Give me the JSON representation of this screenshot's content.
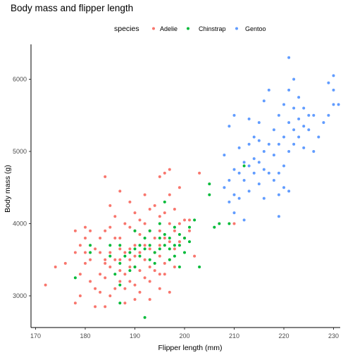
{
  "chart_data": {
    "type": "scatter",
    "title": "Body mass and flipper length",
    "xlabel": "Flipper length (mm)",
    "ylabel": "Body mass (g)",
    "xlim": [
      170,
      232
    ],
    "ylim": [
      2500,
      6500
    ],
    "x_ticks": [
      170,
      180,
      190,
      200,
      210,
      220,
      230
    ],
    "y_ticks": [
      3000,
      4000,
      5000,
      6000
    ],
    "grid": false,
    "legend": {
      "title": "species",
      "position": "top"
    },
    "series": [
      {
        "name": "Adelie",
        "color": "#f8766d",
        "points": [
          [
            172,
            3150
          ],
          [
            174,
            3400
          ],
          [
            176,
            3450
          ],
          [
            178,
            2900
          ],
          [
            178,
            3600
          ],
          [
            178,
            3900
          ],
          [
            179,
            3000
          ],
          [
            179,
            3300
          ],
          [
            179,
            3700
          ],
          [
            180,
            3450
          ],
          [
            180,
            3600
          ],
          [
            180,
            3800
          ],
          [
            180,
            3950
          ],
          [
            181,
            3200
          ],
          [
            181,
            3500
          ],
          [
            181,
            3900
          ],
          [
            182,
            2850
          ],
          [
            182,
            3100
          ],
          [
            182,
            3650
          ],
          [
            183,
            3050
          ],
          [
            183,
            3300
          ],
          [
            183,
            3600
          ],
          [
            183,
            3800
          ],
          [
            184,
            2850
          ],
          [
            184,
            3250
          ],
          [
            184,
            3450
          ],
          [
            184,
            3500
          ],
          [
            184,
            3900
          ],
          [
            184,
            4650
          ],
          [
            185,
            3000
          ],
          [
            185,
            3400
          ],
          [
            185,
            3600
          ],
          [
            185,
            3950
          ],
          [
            185,
            4250
          ],
          [
            186,
            3100
          ],
          [
            186,
            3500
          ],
          [
            186,
            3800
          ],
          [
            186,
            4100
          ],
          [
            187,
            3200
          ],
          [
            187,
            3350
          ],
          [
            187,
            3500
          ],
          [
            187,
            3650
          ],
          [
            187,
            3800
          ],
          [
            187,
            4450
          ],
          [
            188,
            2900
          ],
          [
            188,
            3100
          ],
          [
            188,
            3300
          ],
          [
            188,
            3600
          ],
          [
            188,
            4000
          ],
          [
            189,
            3200
          ],
          [
            189,
            3400
          ],
          [
            189,
            3500
          ],
          [
            189,
            3650
          ],
          [
            189,
            3950
          ],
          [
            189,
            4300
          ],
          [
            190,
            2950
          ],
          [
            190,
            3150
          ],
          [
            190,
            3400
          ],
          [
            190,
            3550
          ],
          [
            190,
            3700
          ],
          [
            190,
            3900
          ],
          [
            190,
            4150
          ],
          [
            191,
            3050
          ],
          [
            191,
            3350
          ],
          [
            191,
            3600
          ],
          [
            191,
            3850
          ],
          [
            191,
            4050
          ],
          [
            192,
            3250
          ],
          [
            192,
            3500
          ],
          [
            192,
            3700
          ],
          [
            192,
            4000
          ],
          [
            192,
            4400
          ],
          [
            193,
            2950
          ],
          [
            193,
            3200
          ],
          [
            193,
            3400
          ],
          [
            193,
            3650
          ],
          [
            193,
            3900
          ],
          [
            193,
            4200
          ],
          [
            194,
            3350
          ],
          [
            194,
            3600
          ],
          [
            194,
            3800
          ],
          [
            194,
            4250
          ],
          [
            195,
            3100
          ],
          [
            195,
            3300
          ],
          [
            195,
            3550
          ],
          [
            195,
            3700
          ],
          [
            195,
            3900
          ],
          [
            195,
            4100
          ],
          [
            195,
            4650
          ],
          [
            196,
            3300
          ],
          [
            196,
            3450
          ],
          [
            196,
            3800
          ],
          [
            196,
            4150
          ],
          [
            196,
            4700
          ],
          [
            197,
            3050
          ],
          [
            197,
            3500
          ],
          [
            197,
            3750
          ],
          [
            197,
            4000
          ],
          [
            197,
            4400
          ],
          [
            197,
            4750
          ],
          [
            198,
            3400
          ],
          [
            198,
            3650
          ],
          [
            198,
            3900
          ],
          [
            198,
            4200
          ],
          [
            199,
            3750
          ],
          [
            199,
            4000
          ],
          [
            199,
            4500
          ],
          [
            200,
            3800
          ],
          [
            200,
            4050
          ],
          [
            201,
            3900
          ],
          [
            201,
            4050
          ],
          [
            202,
            3550
          ],
          [
            203,
            4700
          ],
          [
            210,
            4000
          ]
        ]
      },
      {
        "name": "Chinstrap",
        "color": "#00ba38",
        "points": [
          [
            178,
            3250
          ],
          [
            181,
            3600
          ],
          [
            181,
            3700
          ],
          [
            185,
            3550
          ],
          [
            185,
            3700
          ],
          [
            186,
            3300
          ],
          [
            187,
            2900
          ],
          [
            187,
            3150
          ],
          [
            187,
            3450
          ],
          [
            187,
            3700
          ],
          [
            188,
            3550
          ],
          [
            189,
            3350
          ],
          [
            189,
            3600
          ],
          [
            190,
            3400
          ],
          [
            190,
            3650
          ],
          [
            190,
            3900
          ],
          [
            191,
            3550
          ],
          [
            191,
            3700
          ],
          [
            192,
            3650
          ],
          [
            192,
            3800
          ],
          [
            192,
            2700
          ],
          [
            193,
            3500
          ],
          [
            193,
            3700
          ],
          [
            193,
            3900
          ],
          [
            194,
            3450
          ],
          [
            194,
            3600
          ],
          [
            195,
            3650
          ],
          [
            195,
            3800
          ],
          [
            195,
            4000
          ],
          [
            196,
            3700
          ],
          [
            196,
            3850
          ],
          [
            196,
            4300
          ],
          [
            197,
            3500
          ],
          [
            197,
            3650
          ],
          [
            197,
            3800
          ],
          [
            198,
            3550
          ],
          [
            198,
            3700
          ],
          [
            198,
            3950
          ],
          [
            199,
            3400
          ],
          [
            199,
            3700
          ],
          [
            199,
            3850
          ],
          [
            200,
            3600
          ],
          [
            200,
            3800
          ],
          [
            201,
            3750
          ],
          [
            201,
            3950
          ],
          [
            202,
            4050
          ],
          [
            203,
            3400
          ],
          [
            205,
            4400
          ],
          [
            205,
            4550
          ],
          [
            206,
            3950
          ],
          [
            207,
            4000
          ],
          [
            209,
            4000
          ],
          [
            212,
            4800
          ]
        ]
      },
      {
        "name": "Gentoo",
        "color": "#619cff",
        "points": [
          [
            208,
            4500
          ],
          [
            208,
            4950
          ],
          [
            209,
            4300
          ],
          [
            209,
            4600
          ],
          [
            209,
            5350
          ],
          [
            210,
            4150
          ],
          [
            210,
            4400
          ],
          [
            210,
            4750
          ],
          [
            210,
            5500
          ],
          [
            211,
            4350
          ],
          [
            211,
            4700
          ],
          [
            211,
            5050
          ],
          [
            212,
            4050
          ],
          [
            212,
            4600
          ],
          [
            212,
            4850
          ],
          [
            213,
            4450
          ],
          [
            213,
            4800
          ],
          [
            213,
            5100
          ],
          [
            213,
            5450
          ],
          [
            214,
            4700
          ],
          [
            214,
            4900
          ],
          [
            214,
            5200
          ],
          [
            215,
            4550
          ],
          [
            215,
            4850
          ],
          [
            215,
            5150
          ],
          [
            215,
            5400
          ],
          [
            216,
            4350
          ],
          [
            216,
            4750
          ],
          [
            216,
            5000
          ],
          [
            216,
            5700
          ],
          [
            217,
            4700
          ],
          [
            217,
            5100
          ],
          [
            217,
            5850
          ],
          [
            218,
            4600
          ],
          [
            218,
            4950
          ],
          [
            218,
            5300
          ],
          [
            219,
            4100
          ],
          [
            219,
            4400
          ],
          [
            219,
            4700
          ],
          [
            219,
            5100
          ],
          [
            219,
            5500
          ],
          [
            220,
            4500
          ],
          [
            220,
            4800
          ],
          [
            220,
            5200
          ],
          [
            220,
            5650
          ],
          [
            221,
            4450
          ],
          [
            221,
            5000
          ],
          [
            221,
            5400
          ],
          [
            221,
            5850
          ],
          [
            222,
            5100
          ],
          [
            222,
            5300
          ],
          [
            222,
            5600
          ],
          [
            222,
            6000
          ],
          [
            223,
            5200
          ],
          [
            223,
            5450
          ],
          [
            223,
            5750
          ],
          [
            224,
            5050
          ],
          [
            224,
            5350
          ],
          [
            224,
            5600
          ],
          [
            225,
            5300
          ],
          [
            225,
            5500
          ],
          [
            226,
            5000
          ],
          [
            226,
            5500
          ],
          [
            227,
            5200
          ],
          [
            228,
            5400
          ],
          [
            229,
            5500
          ],
          [
            229,
            5950
          ],
          [
            230,
            5650
          ],
          [
            230,
            5850
          ],
          [
            230,
            6050
          ],
          [
            231,
            5650
          ],
          [
            221,
            6300
          ]
        ]
      }
    ]
  }
}
